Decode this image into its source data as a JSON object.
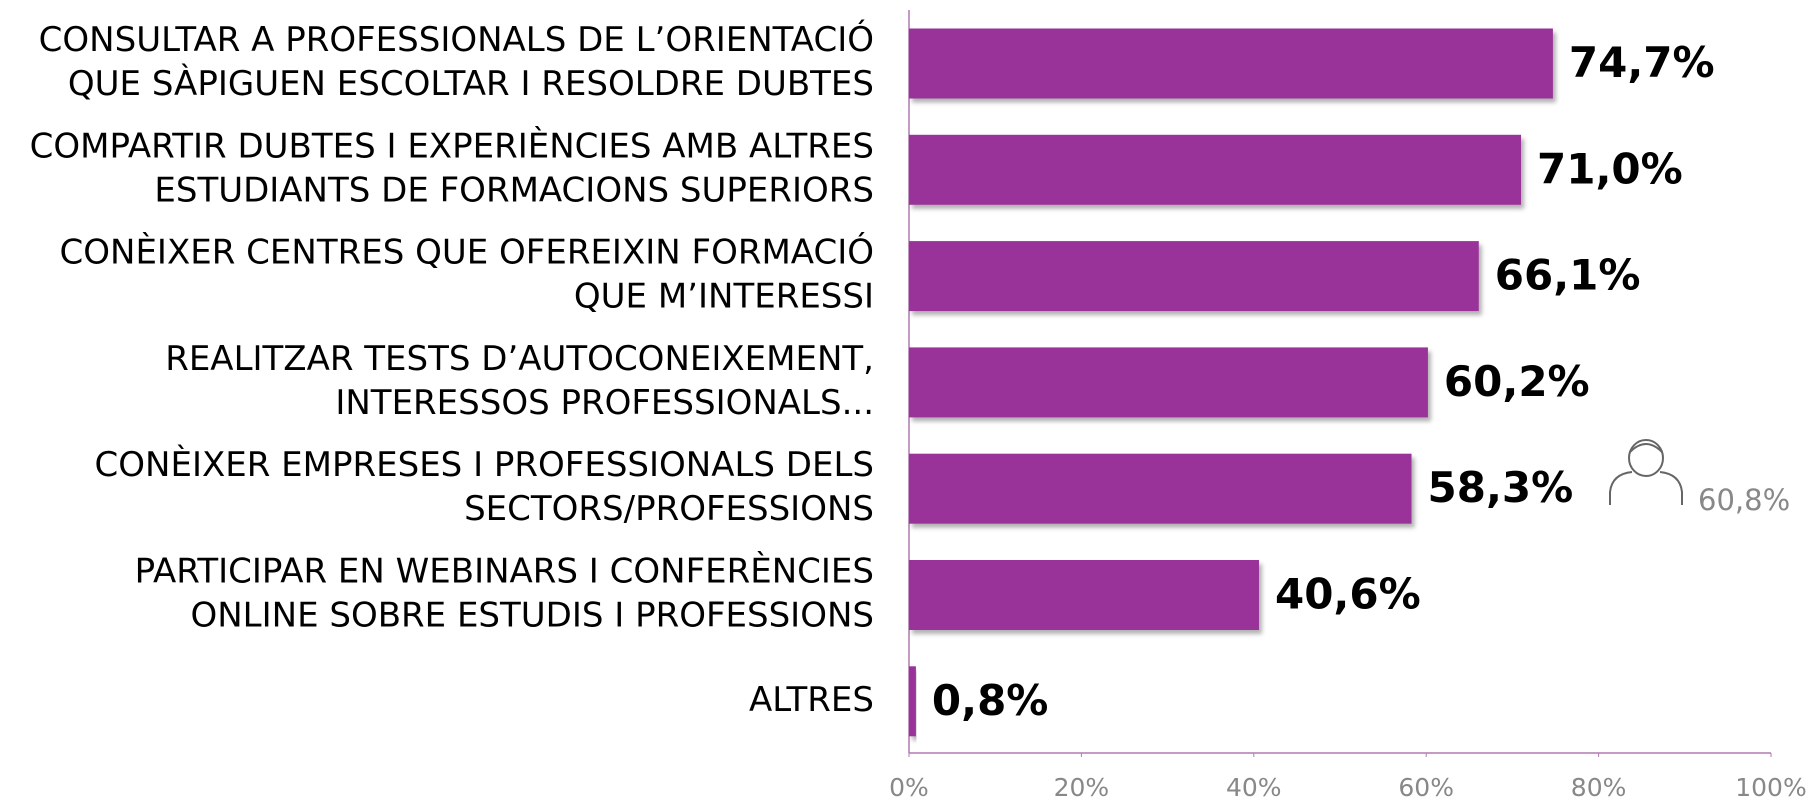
{
  "chart_data": {
    "type": "bar",
    "orientation": "horizontal",
    "color": "#993399",
    "categories": [
      [
        "CONSULTAR A PROFESSIONALS DE L’ORIENTACIÓ",
        "QUE SÀPIGUEN ESCOLTAR I RESOLDRE DUBTES"
      ],
      [
        "COMPARTIR DUBTES I EXPERIÈNCIES AMB ALTRES",
        "ESTUDIANTS DE FORMACIONS SUPERIORS"
      ],
      [
        "CONÈIXER CENTRES QUE OFEREIXIN FORMACIÓ",
        "QUE M’INTERESSI"
      ],
      [
        "REALITZAR TESTS D’AUTOCONEIXEMENT,",
        "INTERESSOS PROFESSIONALS..."
      ],
      [
        "CONÈIXER EMPRESES I PROFESSIONALS DELS",
        "SECTORS/PROFESSIONS"
      ],
      [
        "PARTICIPAR EN WEBINARS I CONFERÈNCIES",
        "ONLINE SOBRE ESTUDIS I PROFESSIONS"
      ],
      [
        "ALTRES"
      ]
    ],
    "values": [
      74.7,
      71.0,
      66.1,
      60.2,
      58.3,
      40.6,
      0.8
    ],
    "value_labels": [
      "74,7%",
      "71,0%",
      "66,1%",
      "60,2%",
      "58,3%",
      "40,6%",
      "0,8%"
    ],
    "xlim": [
      0,
      100
    ],
    "xticks": [
      {
        "value": 0,
        "label": "0%"
      },
      {
        "value": 20,
        "label": "20%"
      },
      {
        "value": 40,
        "label": "40%"
      },
      {
        "value": 60,
        "label": "60%"
      },
      {
        "value": 80,
        "label": "80%"
      },
      {
        "value": 100,
        "label": "100%"
      }
    ],
    "annotations": [
      {
        "text": "60,8%"
      }
    ]
  }
}
